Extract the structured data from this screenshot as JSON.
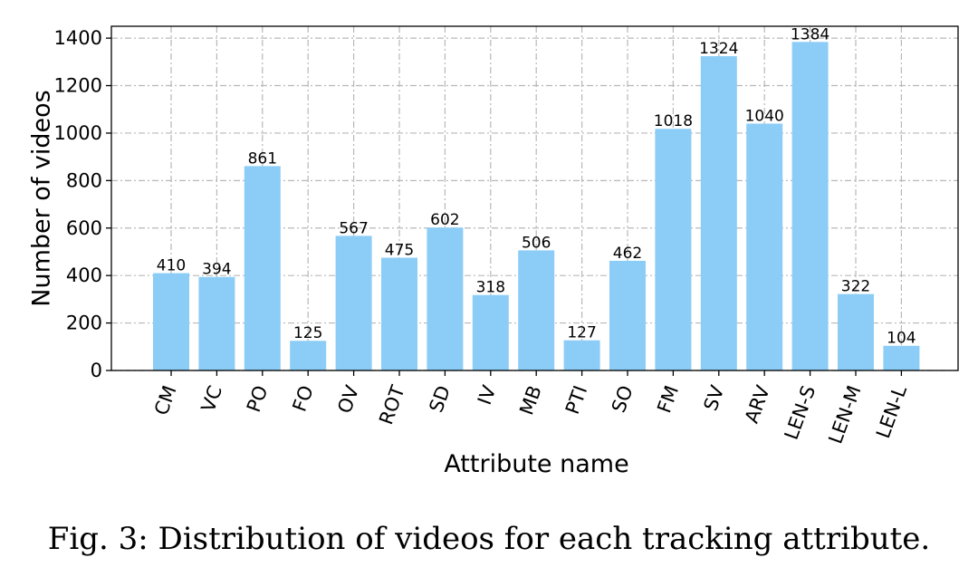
{
  "chart_data": {
    "type": "bar",
    "categories": [
      "CM",
      "VC",
      "PO",
      "FO",
      "OV",
      "ROT",
      "SD",
      "IV",
      "MB",
      "PTI",
      "SO",
      "FM",
      "SV",
      "ARV",
      "LEN-S",
      "LEN-M",
      "LEN-L"
    ],
    "values": [
      410,
      394,
      861,
      125,
      567,
      475,
      602,
      318,
      506,
      127,
      462,
      1018,
      1324,
      1040,
      1384,
      322,
      104
    ],
    "value_labels": [
      "410",
      "394",
      "861",
      "125",
      "567",
      "475",
      "602",
      "318",
      "506",
      "127",
      "462",
      "1018",
      "1324",
      "1040",
      "1384",
      "322",
      "104"
    ],
    "xlabel": "Attribute name",
    "ylabel": "Number of videos",
    "ylim": [
      0,
      1450
    ],
    "yticks": [
      0,
      200,
      400,
      600,
      800,
      1000,
      1200,
      1400
    ],
    "ytick_labels": [
      "0",
      "200",
      "400",
      "600",
      "800",
      "1000",
      "1200",
      "1400"
    ],
    "grid": true,
    "bar_color": "#8ccdf7",
    "grid_color": "#b8b8b8"
  },
  "caption": "Fig. 3: Distribution of videos for each tracking attribute."
}
